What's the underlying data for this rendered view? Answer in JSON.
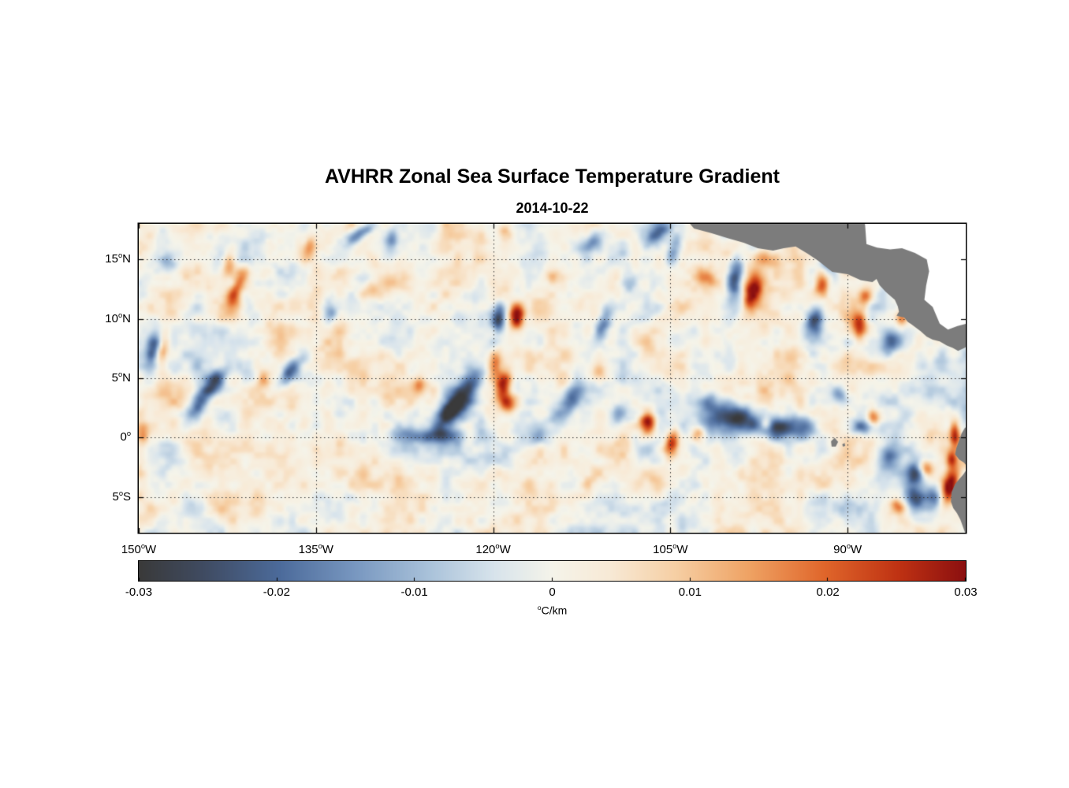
{
  "chart_data": {
    "type": "heatmap",
    "title": "AVHRR Zonal Sea Surface Temperature Gradient",
    "subtitle": "2014-10-22",
    "axes": {
      "degree_symbol": "o",
      "lon_range": [
        -150,
        -80
      ],
      "lat_range": [
        -8,
        18
      ],
      "grid": "dotted",
      "lon_ticks": [
        {
          "num": "150",
          "hem": "W",
          "value": -150,
          "label": "150°W"
        },
        {
          "num": "135",
          "hem": "W",
          "value": -135,
          "label": "135°W"
        },
        {
          "num": "120",
          "hem": "W",
          "value": -120,
          "label": "120°W"
        },
        {
          "num": "105",
          "hem": "W",
          "value": -105,
          "label": "105°W"
        },
        {
          "num": "90",
          "hem": "W",
          "value": -90,
          "label": "90°W"
        }
      ],
      "lat_ticks": [
        {
          "num": "15",
          "hem": "N",
          "value": 15,
          "label": "15°N"
        },
        {
          "num": "10",
          "hem": "N",
          "value": 10,
          "label": "10°N"
        },
        {
          "num": "5",
          "hem": "N",
          "value": 5,
          "label": "5°N"
        },
        {
          "num": "0",
          "hem": "",
          "value": 0,
          "label": "0°"
        },
        {
          "num": "5",
          "hem": "S",
          "value": -5,
          "label": "5°S"
        }
      ]
    },
    "colorbar": {
      "orientation": "horizontal",
      "min": -0.03,
      "max": 0.03,
      "tick_values": [
        -0.03,
        -0.02,
        -0.01,
        0,
        0.01,
        0.02,
        0.03
      ],
      "tick_labels": [
        "-0.03",
        "-0.02",
        "-0.01",
        "0",
        "0.01",
        "0.02",
        "0.03"
      ],
      "label": "°C/km",
      "label_sup": "o",
      "label_text": "C/km",
      "colormap_stops": [
        [
          0.0,
          "#3a3a3a"
        ],
        [
          0.08,
          "#404c63"
        ],
        [
          0.17,
          "#4c6b9b"
        ],
        [
          0.26,
          "#7897c0"
        ],
        [
          0.35,
          "#a9c2da"
        ],
        [
          0.43,
          "#d8e4ec"
        ],
        [
          0.5,
          "#f5f4ea"
        ],
        [
          0.57,
          "#f8ead6"
        ],
        [
          0.65,
          "#f6cfa4"
        ],
        [
          0.74,
          "#efa263"
        ],
        [
          0.83,
          "#e0662b"
        ],
        [
          0.92,
          "#bf3213"
        ],
        [
          1.0,
          "#8c1010"
        ]
      ]
    },
    "land_color": "#7c7c7c",
    "nodata_color": "#ffffff",
    "grid_color": "#333333",
    "value_units": "°C/km",
    "feature_format": [
      "lon_deg",
      "lat_deg",
      "value_C_per_km",
      "sigma_lon_deg",
      "sigma_lat_deg",
      "rotation_deg"
    ],
    "features": [
      [
        -131.2,
        17.2,
        -0.021,
        0.35,
        1.0,
        -55
      ],
      [
        -128.6,
        16.6,
        -0.014,
        0.45,
        0.8,
        -20
      ],
      [
        -133.8,
        10.4,
        -0.012,
        0.45,
        0.6,
        0
      ],
      [
        -142.4,
        14.5,
        0.016,
        0.4,
        0.9,
        -10
      ],
      [
        -141.6,
        12.9,
        0.02,
        0.38,
        0.85,
        -25
      ],
      [
        -142.0,
        11.3,
        0.013,
        0.5,
        0.6,
        0
      ],
      [
        -147.6,
        14.8,
        -0.012,
        0.55,
        0.5,
        0
      ],
      [
        -148.8,
        7.6,
        -0.017,
        0.4,
        1.0,
        -10
      ],
      [
        -147.9,
        7.7,
        0.015,
        0.32,
        0.85,
        -10
      ],
      [
        -144.6,
        3.3,
        -0.026,
        0.55,
        1.6,
        -33
      ],
      [
        -143.2,
        5.0,
        -0.017,
        0.45,
        0.8,
        -30
      ],
      [
        -137.3,
        5.4,
        -0.02,
        0.42,
        1.1,
        -40
      ],
      [
        -139.5,
        4.9,
        0.013,
        0.38,
        0.5,
        0
      ],
      [
        -126.2,
        4.4,
        0.017,
        0.38,
        0.55,
        0
      ],
      [
        -122.3,
        3.8,
        -0.029,
        0.75,
        2.0,
        -33
      ],
      [
        -123.9,
        2.0,
        -0.019,
        0.5,
        1.3,
        -33
      ],
      [
        -124.6,
        0.1,
        -0.02,
        1.1,
        0.45,
        0
      ],
      [
        -119.9,
        6.1,
        0.023,
        0.4,
        0.75,
        -10
      ],
      [
        -119.2,
        4.4,
        0.026,
        0.45,
        0.85,
        -15
      ],
      [
        -118.8,
        2.9,
        0.02,
        0.45,
        0.65,
        0
      ],
      [
        -118.0,
        10.2,
        0.031,
        0.42,
        0.75,
        0
      ],
      [
        -119.5,
        10.0,
        -0.029,
        0.45,
        0.8,
        -10
      ],
      [
        -113.6,
        3.0,
        -0.024,
        0.6,
        1.5,
        -30
      ],
      [
        -110.6,
        9.7,
        -0.018,
        0.45,
        0.95,
        -20
      ],
      [
        -111.5,
        16.6,
        -0.016,
        0.45,
        1.0,
        -40
      ],
      [
        -106.1,
        17.1,
        -0.018,
        0.45,
        1.05,
        -45
      ],
      [
        -104.6,
        15.9,
        -0.015,
        0.42,
        0.95,
        -20
      ],
      [
        -106.9,
        1.3,
        0.031,
        0.48,
        0.68,
        0
      ],
      [
        -104.9,
        -0.5,
        0.028,
        0.4,
        0.9,
        -10
      ],
      [
        -99.2,
        1.6,
        -0.028,
        1.9,
        0.85,
        -8
      ],
      [
        -96.0,
        0.7,
        -0.022,
        1.0,
        0.65,
        0
      ],
      [
        -93.4,
        0.9,
        -0.019,
        0.8,
        0.65,
        0
      ],
      [
        -96.9,
        1.2,
        0.016,
        0.3,
        0.42,
        0
      ],
      [
        -98.1,
        12.1,
        0.031,
        0.5,
        1.1,
        -15
      ],
      [
        -99.5,
        13.5,
        -0.026,
        0.45,
        1.4,
        -8
      ],
      [
        -97.1,
        15.1,
        0.02,
        0.65,
        0.55,
        0
      ],
      [
        -92.8,
        9.8,
        -0.029,
        0.55,
        1.05,
        -10
      ],
      [
        -89.0,
        9.4,
        0.024,
        0.45,
        0.85,
        0
      ],
      [
        -88.5,
        11.9,
        0.016,
        0.38,
        0.55,
        0
      ],
      [
        -86.3,
        8.0,
        -0.019,
        0.55,
        0.85,
        -15
      ],
      [
        -85.4,
        10.0,
        0.017,
        0.36,
        0.5,
        0
      ],
      [
        -90.6,
        3.6,
        -0.015,
        0.55,
        0.55,
        0
      ],
      [
        -88.6,
        0.9,
        -0.018,
        0.9,
        0.48,
        0
      ],
      [
        -87.8,
        1.7,
        0.02,
        0.38,
        0.5,
        0
      ],
      [
        -86.6,
        -1.6,
        -0.02,
        0.65,
        0.75,
        0
      ],
      [
        -84.1,
        -2.9,
        -0.026,
        0.7,
        0.95,
        -20
      ],
      [
        -82.7,
        -4.9,
        -0.021,
        0.55,
        0.7,
        0
      ],
      [
        -84.3,
        -5.3,
        -0.022,
        0.65,
        0.85,
        -10
      ],
      [
        -83.4,
        -2.6,
        0.031,
        0.45,
        0.5,
        0
      ],
      [
        -81.4,
        -4.1,
        0.031,
        0.45,
        1.1,
        -20
      ],
      [
        -85.7,
        -5.8,
        0.015,
        0.45,
        0.45,
        0
      ],
      [
        -80.9,
        0.2,
        0.026,
        0.33,
        0.85,
        0
      ],
      [
        -81.2,
        -1.8,
        0.02,
        0.3,
        0.5,
        0
      ],
      [
        -149.6,
        0.4,
        0.012,
        0.33,
        0.55,
        0
      ],
      [
        -119.0,
        17.2,
        0.014,
        0.45,
        0.5,
        0
      ],
      [
        -102.0,
        13.5,
        0.012,
        0.55,
        0.5,
        0
      ],
      [
        -108.5,
        13.0,
        -0.012,
        0.45,
        0.6,
        0
      ],
      [
        -115.0,
        13.6,
        0.012,
        0.55,
        0.55,
        0
      ],
      [
        -111.0,
        5.5,
        0.013,
        0.45,
        0.55,
        0
      ],
      [
        -109.3,
        2.0,
        -0.014,
        0.55,
        0.75,
        -20
      ],
      [
        -101.5,
        3.1,
        -0.014,
        0.75,
        0.65,
        0
      ],
      [
        -102.6,
        0.3,
        0.017,
        0.45,
        0.5,
        0
      ],
      [
        -92.2,
        12.9,
        0.019,
        0.45,
        0.75,
        -10
      ],
      [
        -91.6,
        14.4,
        -0.016,
        0.45,
        0.7,
        0
      ],
      [
        -116.5,
        0.0,
        -0.013,
        0.8,
        0.5,
        0
      ],
      [
        -127.5,
        0.3,
        -0.012,
        0.9,
        0.5,
        0
      ],
      [
        -135.5,
        16.0,
        0.013,
        0.4,
        0.7,
        -20
      ],
      [
        -130.5,
        12.5,
        0.011,
        0.6,
        0.5,
        0
      ]
    ],
    "noise_texture": {
      "seed": 42,
      "amplitude": 0.0068,
      "bias": 0.0012,
      "octaves": [
        {
          "scale_deg": 2.4,
          "weight": 1.0
        },
        {
          "scale_deg": 1.0,
          "weight": 0.6
        },
        {
          "scale_deg": 0.5,
          "weight": 0.3
        }
      ]
    },
    "land_polygons": {
      "central_america": [
        [
          -104.2,
          19.0
        ],
        [
          -103.0,
          17.6
        ],
        [
          -101.5,
          17.2
        ],
        [
          -100.2,
          16.8
        ],
        [
          -98.8,
          16.4
        ],
        [
          -97.6,
          15.95
        ],
        [
          -96.3,
          15.75
        ],
        [
          -95.4,
          15.95
        ],
        [
          -94.4,
          16.1
        ],
        [
          -93.4,
          15.5
        ],
        [
          -92.5,
          14.9
        ],
        [
          -91.3,
          13.95
        ],
        [
          -90.0,
          13.75
        ],
        [
          -88.9,
          13.25
        ],
        [
          -87.9,
          13.1
        ],
        [
          -87.55,
          13.35
        ],
        [
          -87.3,
          12.85
        ],
        [
          -86.8,
          12.3
        ],
        [
          -86.0,
          11.6
        ],
        [
          -85.75,
          11.05
        ],
        [
          -85.65,
          10.6
        ],
        [
          -85.85,
          10.25
        ],
        [
          -85.2,
          10.1
        ],
        [
          -84.9,
          9.75
        ],
        [
          -84.6,
          9.55
        ],
        [
          -83.8,
          8.95
        ],
        [
          -83.3,
          8.5
        ],
        [
          -82.8,
          8.25
        ],
        [
          -82.2,
          8.1
        ],
        [
          -81.6,
          7.75
        ],
        [
          -81.1,
          7.55
        ],
        [
          -80.65,
          7.3
        ],
        [
          -80.1,
          7.55
        ],
        [
          -79.5,
          8.0
        ],
        [
          -78.0,
          8.5
        ],
        [
          -78.0,
          19.0
        ]
      ],
      "caribbean_nodata": [
        [
          -88.6,
          19.0
        ],
        [
          -88.4,
          16.3
        ],
        [
          -87.5,
          16.0
        ],
        [
          -86.4,
          15.85
        ],
        [
          -85.4,
          15.95
        ],
        [
          -84.3,
          15.55
        ],
        [
          -83.3,
          15.0
        ],
        [
          -83.1,
          14.0
        ],
        [
          -83.35,
          12.8
        ],
        [
          -83.5,
          11.6
        ],
        [
          -82.8,
          11.0
        ],
        [
          -82.2,
          9.6
        ],
        [
          -81.5,
          9.1
        ],
        [
          -80.7,
          9.4
        ],
        [
          -79.9,
          9.6
        ],
        [
          -79.0,
          9.5
        ],
        [
          -79.0,
          19.0
        ]
      ],
      "south_america": [
        [
          -80.05,
          0.85
        ],
        [
          -80.35,
          0.35
        ],
        [
          -80.55,
          -0.2
        ],
        [
          -80.8,
          -0.9
        ],
        [
          -80.9,
          -1.4
        ],
        [
          -80.55,
          -1.85
        ],
        [
          -80.15,
          -2.1
        ],
        [
          -79.8,
          -2.5
        ],
        [
          -80.2,
          -3.1
        ],
        [
          -80.9,
          -3.9
        ],
        [
          -81.2,
          -4.6
        ],
        [
          -81.25,
          -5.4
        ],
        [
          -81.05,
          -5.95
        ],
        [
          -80.75,
          -6.35
        ],
        [
          -80.45,
          -6.9
        ],
        [
          -80.2,
          -7.6
        ],
        [
          -79.9,
          -8.4
        ],
        [
          -78.0,
          -8.4
        ],
        [
          -78.0,
          0.5
        ]
      ],
      "galapagos": [
        [
          [
            -91.4,
            -0.3
          ],
          [
            -91.1,
            0.0
          ],
          [
            -90.8,
            -0.35
          ],
          [
            -91.0,
            -0.75
          ],
          [
            -91.35,
            -0.75
          ]
        ],
        [
          [
            -90.45,
            -0.55
          ],
          [
            -90.25,
            -0.45
          ],
          [
            -90.2,
            -0.7
          ],
          [
            -90.4,
            -0.75
          ]
        ]
      ]
    }
  }
}
